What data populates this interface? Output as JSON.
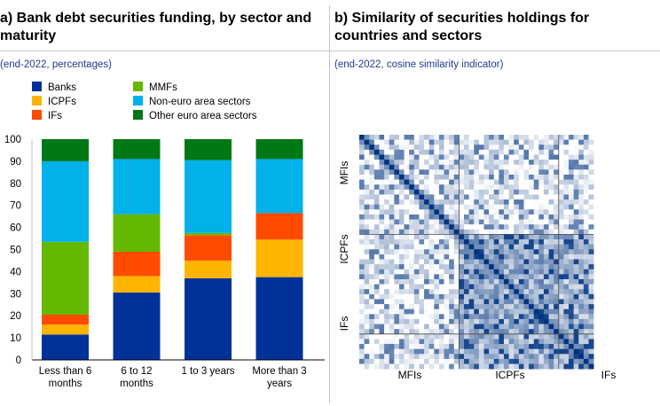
{
  "panel_a": {
    "title": "a) Bank debt securities funding, by sector and maturity",
    "subtitle": "(end-2022, percentages)"
  },
  "panel_b": {
    "title": "b) Similarity of securities holdings for countries and sectors",
    "subtitle": "(end-2022, cosine similarity indicator)"
  },
  "chart_data": [
    {
      "type": "bar",
      "stacked": true,
      "title": "a) Bank debt securities funding, by sector and maturity",
      "subtitle": "(end-2022, percentages)",
      "categories": [
        [
          "Less than 6",
          "months"
        ],
        [
          "6 to 12",
          "months"
        ],
        [
          "1 to 3 years"
        ],
        [
          "More than 3",
          "years"
        ]
      ],
      "ylim": [
        0,
        100
      ],
      "yticks": [
        0,
        10,
        20,
        30,
        40,
        50,
        60,
        70,
        80,
        90,
        100
      ],
      "grid": false,
      "legend_position": "top",
      "series": [
        {
          "name": "Banks",
          "color": "#003299",
          "values": [
            11.5,
            30.5,
            37,
            37.5
          ]
        },
        {
          "name": "ICPFs",
          "color": "#ffb400",
          "values": [
            4.5,
            7.5,
            8,
            17
          ]
        },
        {
          "name": "IFs",
          "color": "#ff4b00",
          "values": [
            4.5,
            11,
            11.5,
            12
          ]
        },
        {
          "name": "MMFs",
          "color": "#65b800",
          "values": [
            33,
            17,
            1,
            0
          ]
        },
        {
          "name": "Non-euro area sectors",
          "color": "#00b1ea",
          "values": [
            36.5,
            25,
            33,
            24.5
          ]
        },
        {
          "name": "Other euro area sectors",
          "color": "#007816",
          "values": [
            10,
            9,
            9.5,
            9
          ]
        }
      ]
    },
    {
      "type": "heatmap",
      "title": "b) Similarity of securities holdings for countries and sectors",
      "subtitle": "(end-2022, cosine similarity indicator)",
      "groups": [
        "MFIs",
        "ICPFs",
        "IFs"
      ],
      "x_labels": [
        "MFIs",
        "ICPFs",
        "IFs"
      ],
      "y_labels": [
        "MFIs",
        "ICPFs",
        "IFs"
      ],
      "colors": {
        "low": "#ffffff",
        "high": "#00337f"
      },
      "size": 47,
      "group_size": [
        20,
        20,
        7
      ],
      "value_range": [
        0,
        1
      ],
      "diagonal_value": 1
    }
  ]
}
